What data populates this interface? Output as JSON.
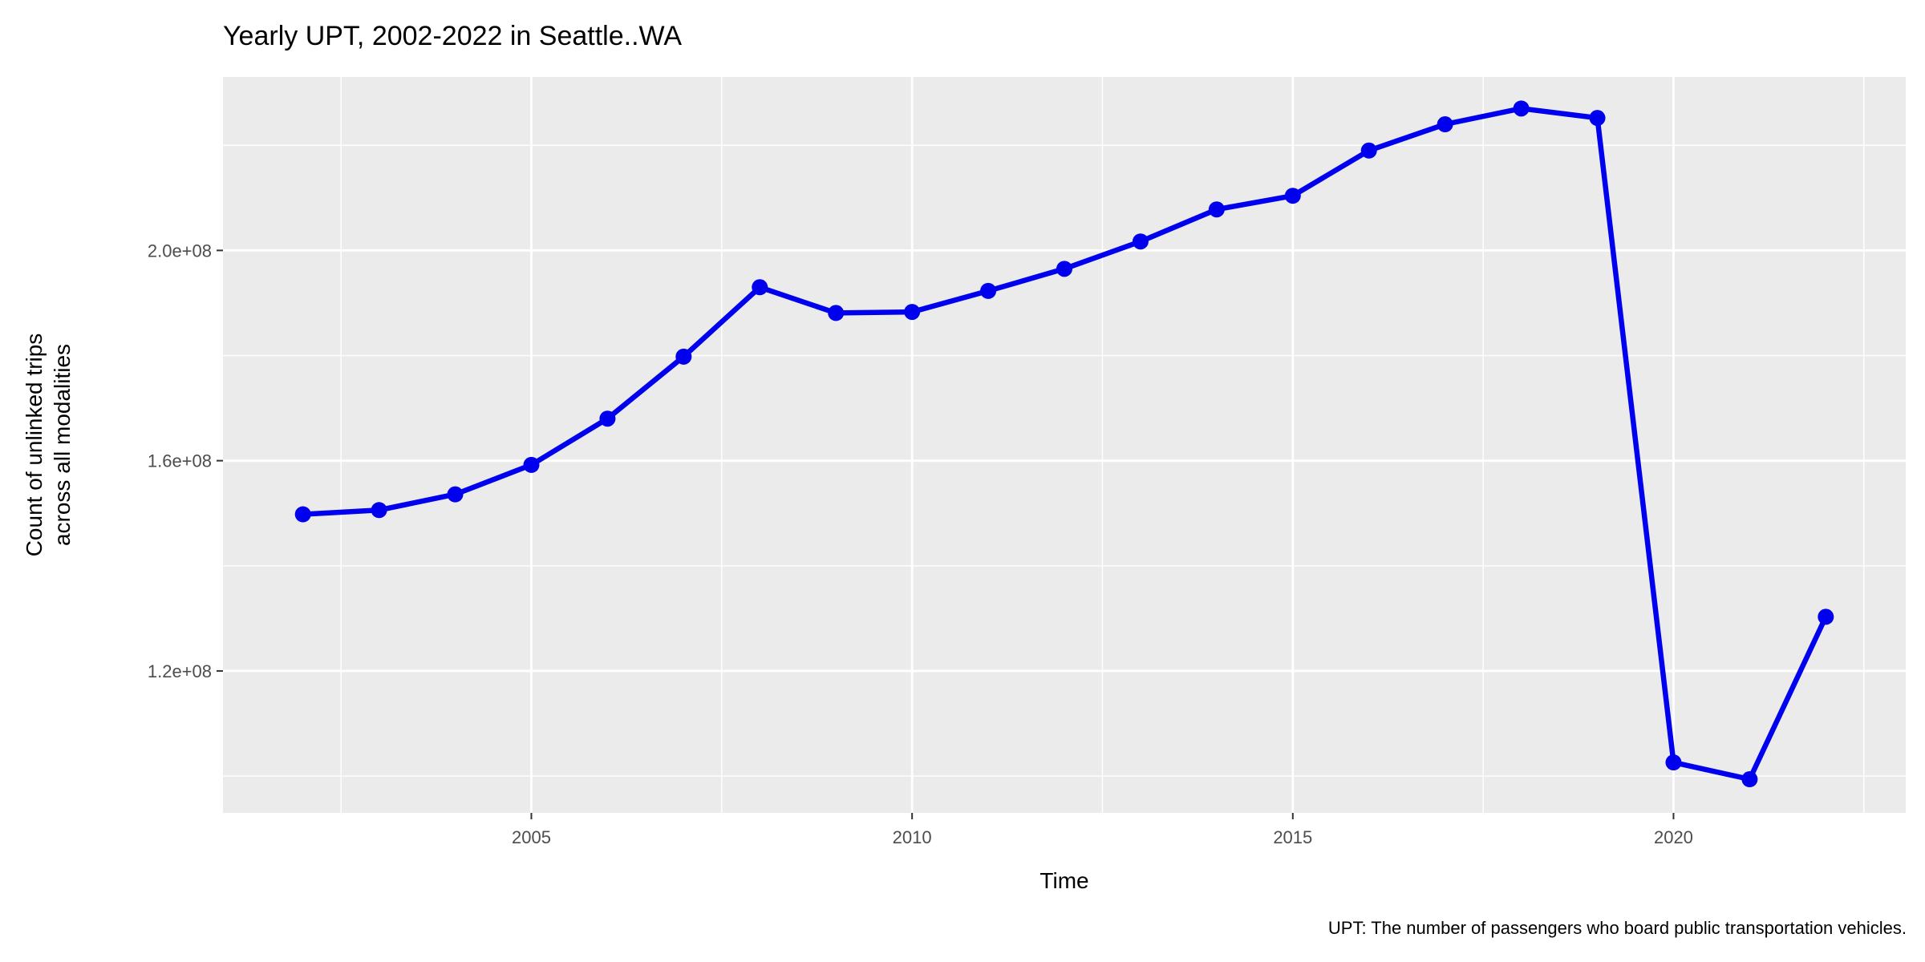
{
  "chart_data": {
    "type": "line",
    "title": "Yearly UPT, 2002-2022 in Seattle..WA",
    "xlabel": "Time",
    "ylabel_lines": [
      "Count of unlinked trips",
      "across all modalities"
    ],
    "caption": "UPT: The number of passengers who board public transportation vehicles.",
    "x": [
      2002,
      2003,
      2004,
      2005,
      2006,
      2007,
      2008,
      2009,
      2010,
      2011,
      2012,
      2013,
      2014,
      2015,
      2016,
      2017,
      2018,
      2019,
      2020,
      2021,
      2022
    ],
    "series": [
      {
        "values": [
          149800000,
          150600000,
          153600000,
          159200000,
          168000000,
          179800000,
          193000000,
          188100000,
          188300000,
          192300000,
          196500000,
          201700000,
          207800000,
          210400000,
          219000000,
          224000000,
          227000000,
          225200000,
          102600000,
          99400000,
          130300000
        ],
        "color": "#0000ee"
      }
    ],
    "xlim": [
      2000.95,
      2023.05
    ],
    "ylim": [
      93000000,
      233000000
    ],
    "x_ticks": [
      2005,
      2010,
      2015,
      2020
    ],
    "x_tick_labels": [
      "2005",
      "2010",
      "2015",
      "2020"
    ],
    "x_minor_ticks": [
      2002.5,
      2007.5,
      2012.5,
      2017.5,
      2022.5
    ],
    "y_ticks": [
      120000000,
      160000000,
      200000000
    ],
    "y_tick_labels": [
      "1.2e+08",
      "1.6e+08",
      "2.0e+08"
    ],
    "y_minor_ticks": [
      100000000,
      140000000,
      180000000,
      220000000
    ],
    "grid": true,
    "panel_background": "#ebebeb",
    "grid_color": "#ffffff"
  }
}
